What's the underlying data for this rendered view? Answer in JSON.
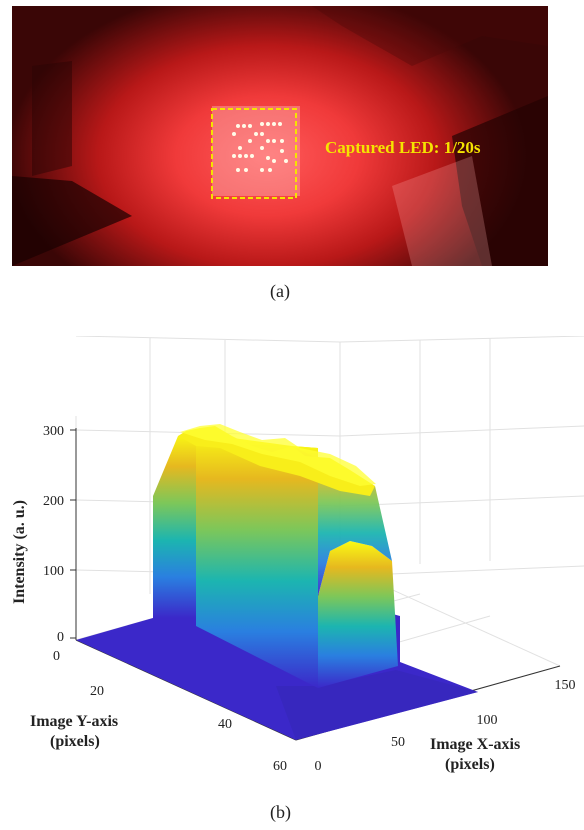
{
  "figure_a": {
    "label": "(a)",
    "annotation": "Captured LED: 1/20s"
  },
  "figure_b": {
    "label": "(b)"
  },
  "chart_data": {
    "type": "surface3d",
    "zlabel": "Intensity (a. u.)",
    "xlabel": "Image X-axis (pixels)",
    "ylabel": "Image Y-axis (pixels)",
    "z_ticks": [
      "0",
      "100",
      "200",
      "300"
    ],
    "x_ticks": [
      "0",
      "50",
      "100",
      "150"
    ],
    "y_ticks": [
      "0",
      "20",
      "40",
      "60"
    ],
    "zlim": [
      0,
      300
    ],
    "xlim": [
      0,
      150
    ],
    "ylim": [
      0,
      60
    ],
    "grid": true,
    "colormap": "parula",
    "surface": {
      "baseline": 0,
      "plateau_intensity_range": [
        240,
        290
      ],
      "colors": [
        "#3b28c9",
        "#2a7fe0",
        "#1cb5b0",
        "#7cc75a",
        "#e6b81f",
        "#fafa14"
      ]
    }
  }
}
